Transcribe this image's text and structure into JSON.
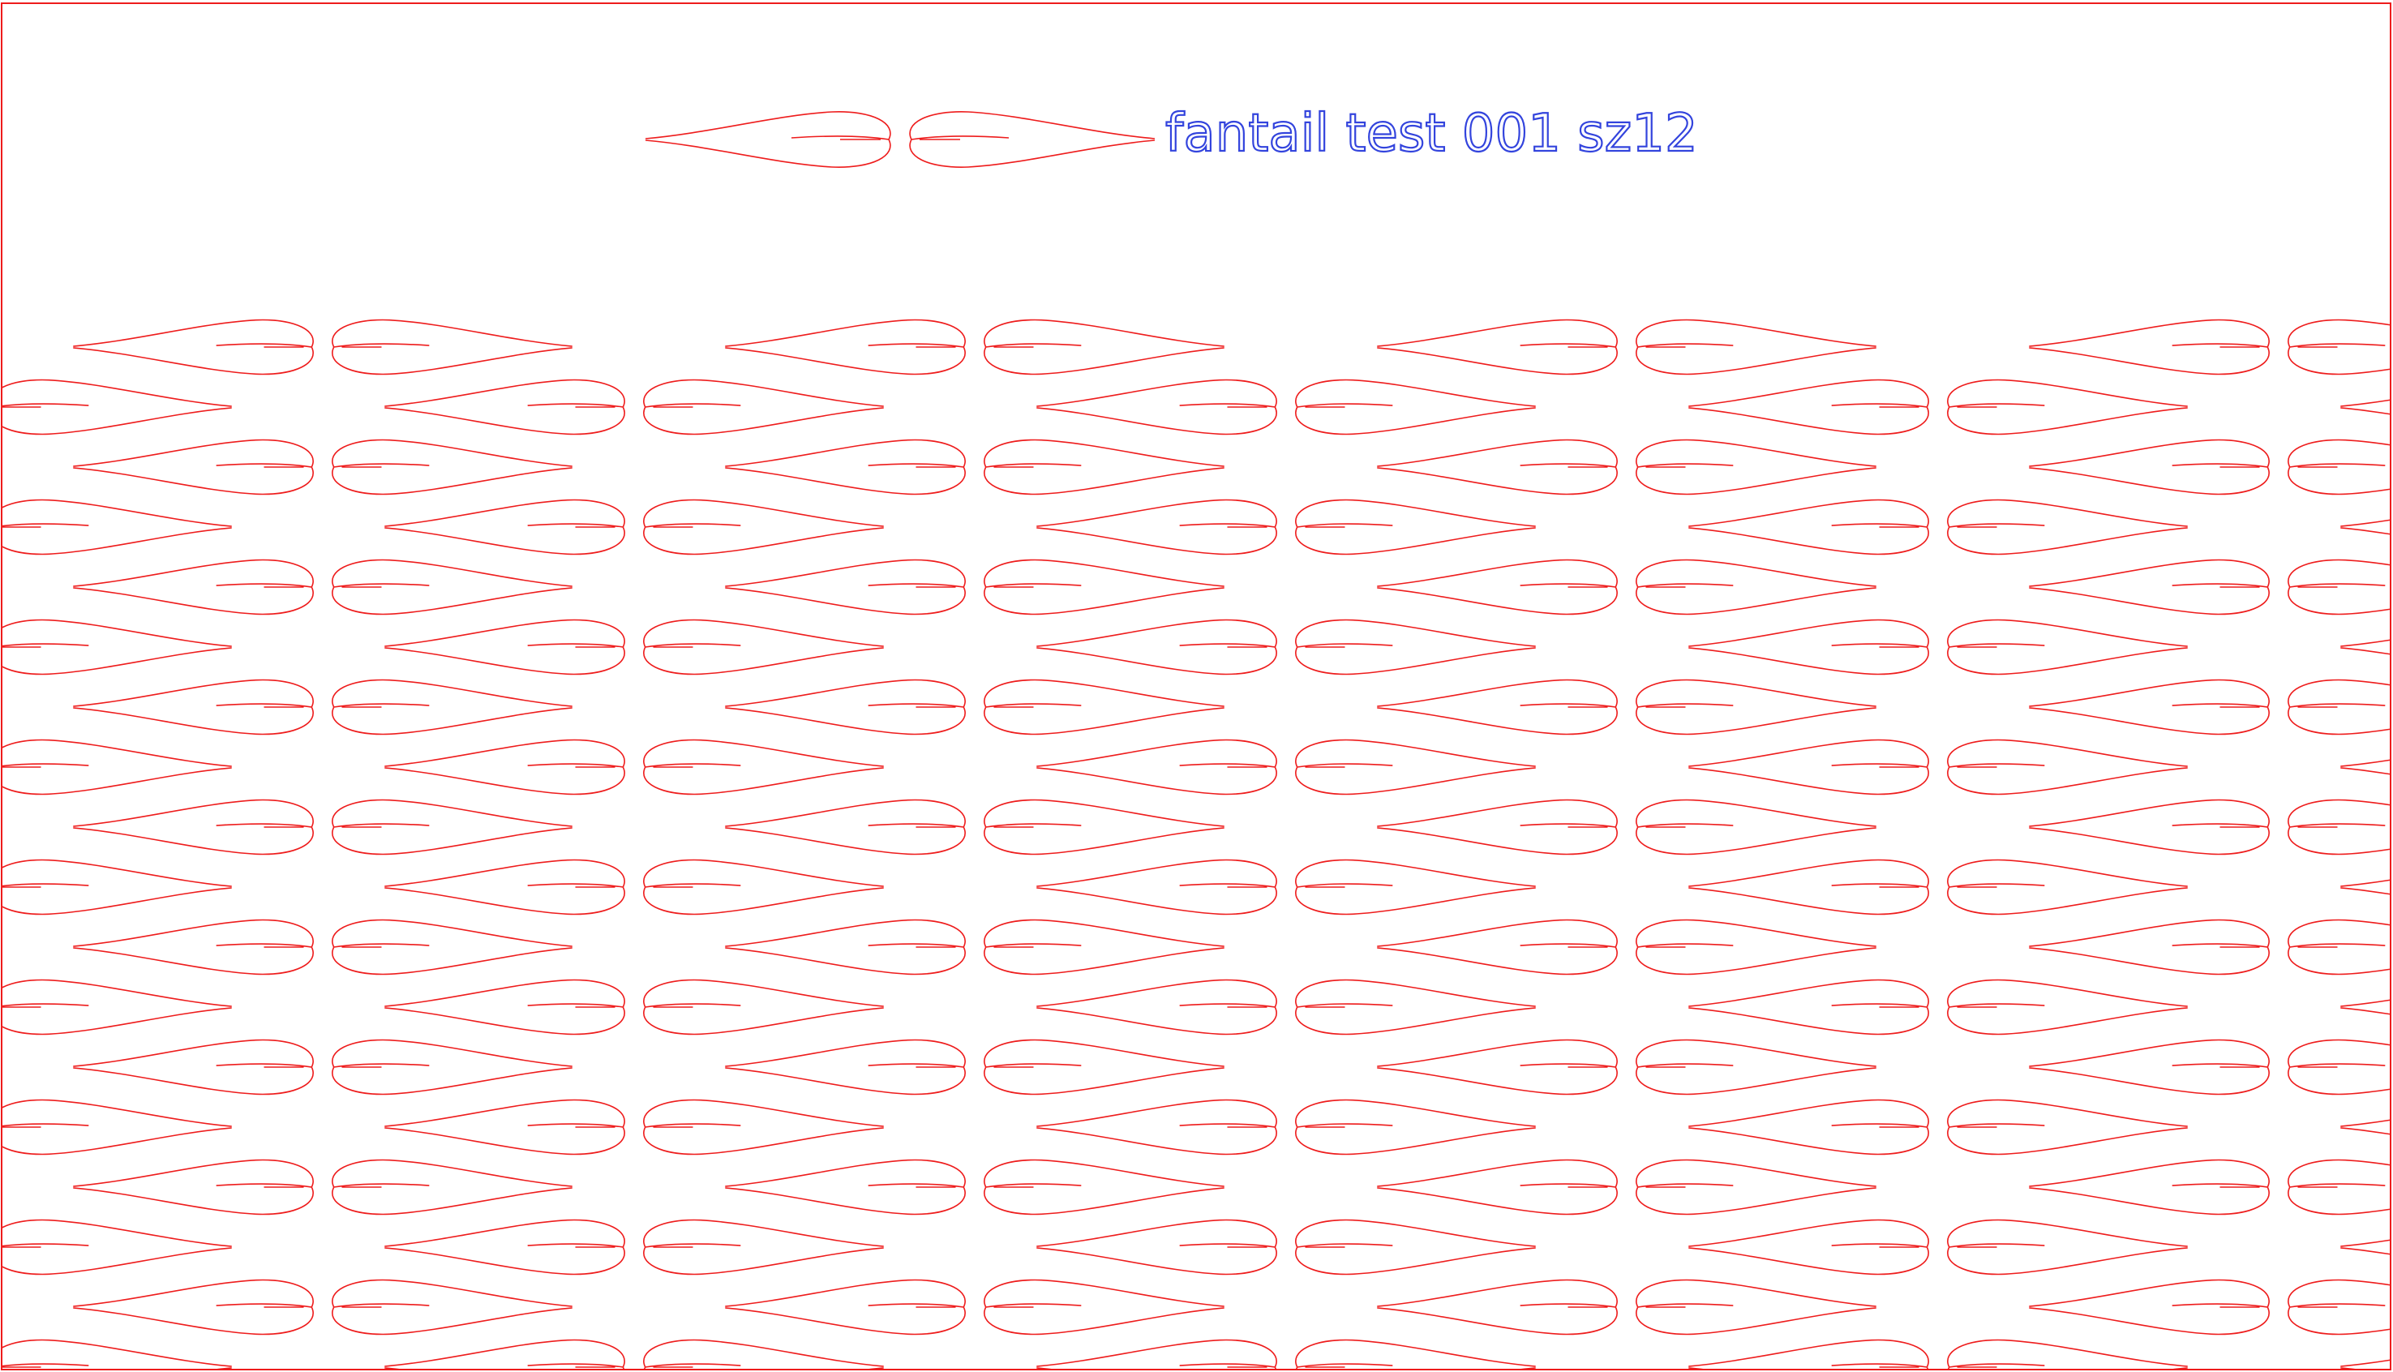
{
  "title": "fantail test 001 sz12",
  "colors": {
    "motif_stroke": "#ee1c1c",
    "border_stroke": "#ee1c1c",
    "title_stroke": "#3344dd",
    "background": "#ffffff"
  },
  "layout": {
    "motif": "paired fantail tails (two mirrored heart-tailed curves)",
    "pattern": "staggered rows clipped by page border"
  }
}
